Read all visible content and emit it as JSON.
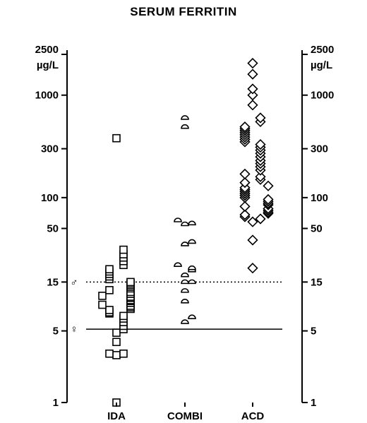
{
  "chart_data": {
    "type": "scatter",
    "title": "SERUM FERRITIN",
    "y_unit": "µg/L",
    "yscale": "log",
    "ylim": [
      1,
      2500
    ],
    "y_ticks": [
      1,
      5,
      15,
      50,
      100,
      300,
      1000,
      2500
    ],
    "y_tick_labels": [
      "1",
      "5",
      "15",
      "50",
      "100",
      "300",
      "1000",
      "2500"
    ],
    "categories": [
      "IDA",
      "COMBI",
      "ACD"
    ],
    "reference_lines": [
      {
        "label": "♂",
        "value": 15,
        "style": "dotted"
      },
      {
        "label": "♀",
        "value": 5.2,
        "style": "solid"
      }
    ],
    "series": [
      {
        "category": "IDA",
        "marker": "square",
        "values": [
          1.0,
          2.9,
          3.0,
          3.0,
          3.9,
          4.8,
          5.2,
          5.6,
          6.1,
          6.6,
          7.0,
          7.4,
          7.6,
          8.0,
          8.2,
          8.5,
          8.8,
          9.0,
          9.4,
          9.8,
          10.0,
          10.5,
          10.8,
          11.0,
          11.5,
          12.0,
          12.5,
          13.0,
          13.5,
          14.0,
          14.5,
          15.0,
          16.0,
          17.0,
          18.0,
          19.0,
          20.0,
          22.0,
          24.0,
          26.0,
          28.0,
          31.0,
          380.0
        ]
      },
      {
        "category": "COMBI",
        "marker": "half-circle",
        "values": [
          6.1,
          6.8,
          9.7,
          12.3,
          15.0,
          15.0,
          17.5,
          19.5,
          20.5,
          22.0,
          35.0,
          37.0,
          55.0,
          56.0,
          60.0,
          490.0,
          600.0
        ]
      },
      {
        "category": "ACD",
        "marker": "diamond",
        "values": [
          20.5,
          38.5,
          58.0,
          62.0,
          65.0,
          68.0,
          70.0,
          72.0,
          75.0,
          78.0,
          82.0,
          85.0,
          88.0,
          92.0,
          96.0,
          100.0,
          105.0,
          110.0,
          115.0,
          120.0,
          125.0,
          130.0,
          140.0,
          150.0,
          160.0,
          170.0,
          185.0,
          200.0,
          215.0,
          230.0,
          250.0,
          270.0,
          290.0,
          310.0,
          330.0,
          350.0,
          370.0,
          390.0,
          410.0,
          430.0,
          450.0,
          470.0,
          490.0,
          550.0,
          600.0,
          800.0,
          1000.0,
          1150.0,
          1600.0,
          2050.0
        ]
      }
    ]
  }
}
